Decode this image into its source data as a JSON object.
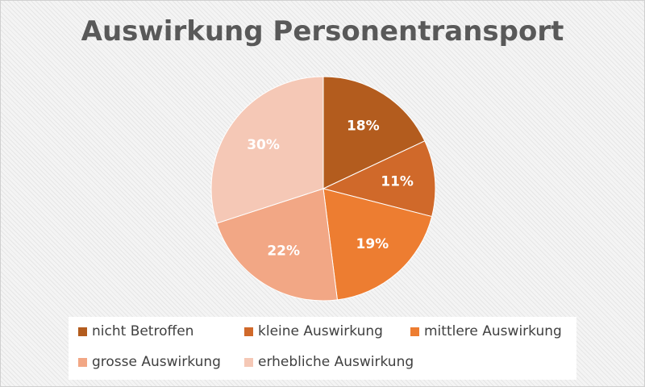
{
  "chart_data": {
    "type": "pie",
    "title": "Auswirkung Personentransport",
    "slices": [
      {
        "label": "nicht Betroffen",
        "value": 18,
        "display": "18%",
        "color": "#b35c1e"
      },
      {
        "label": "kleine Auswirkung",
        "value": 11,
        "display": "11%",
        "color": "#d0692a"
      },
      {
        "label": "mittlere Auswirkung",
        "value": 19,
        "display": "19%",
        "color": "#ed7d31"
      },
      {
        "label": "grosse Auswirkung",
        "value": 22,
        "display": "22%",
        "color": "#f2a785"
      },
      {
        "label": "erhebliche Auswirkung",
        "value": 30,
        "display": "30%",
        "color": "#f5c8b6"
      }
    ],
    "start_angle_deg": 0,
    "direction": "clockwise",
    "data_label_color": "#ffffff",
    "legend_position": "bottom"
  }
}
